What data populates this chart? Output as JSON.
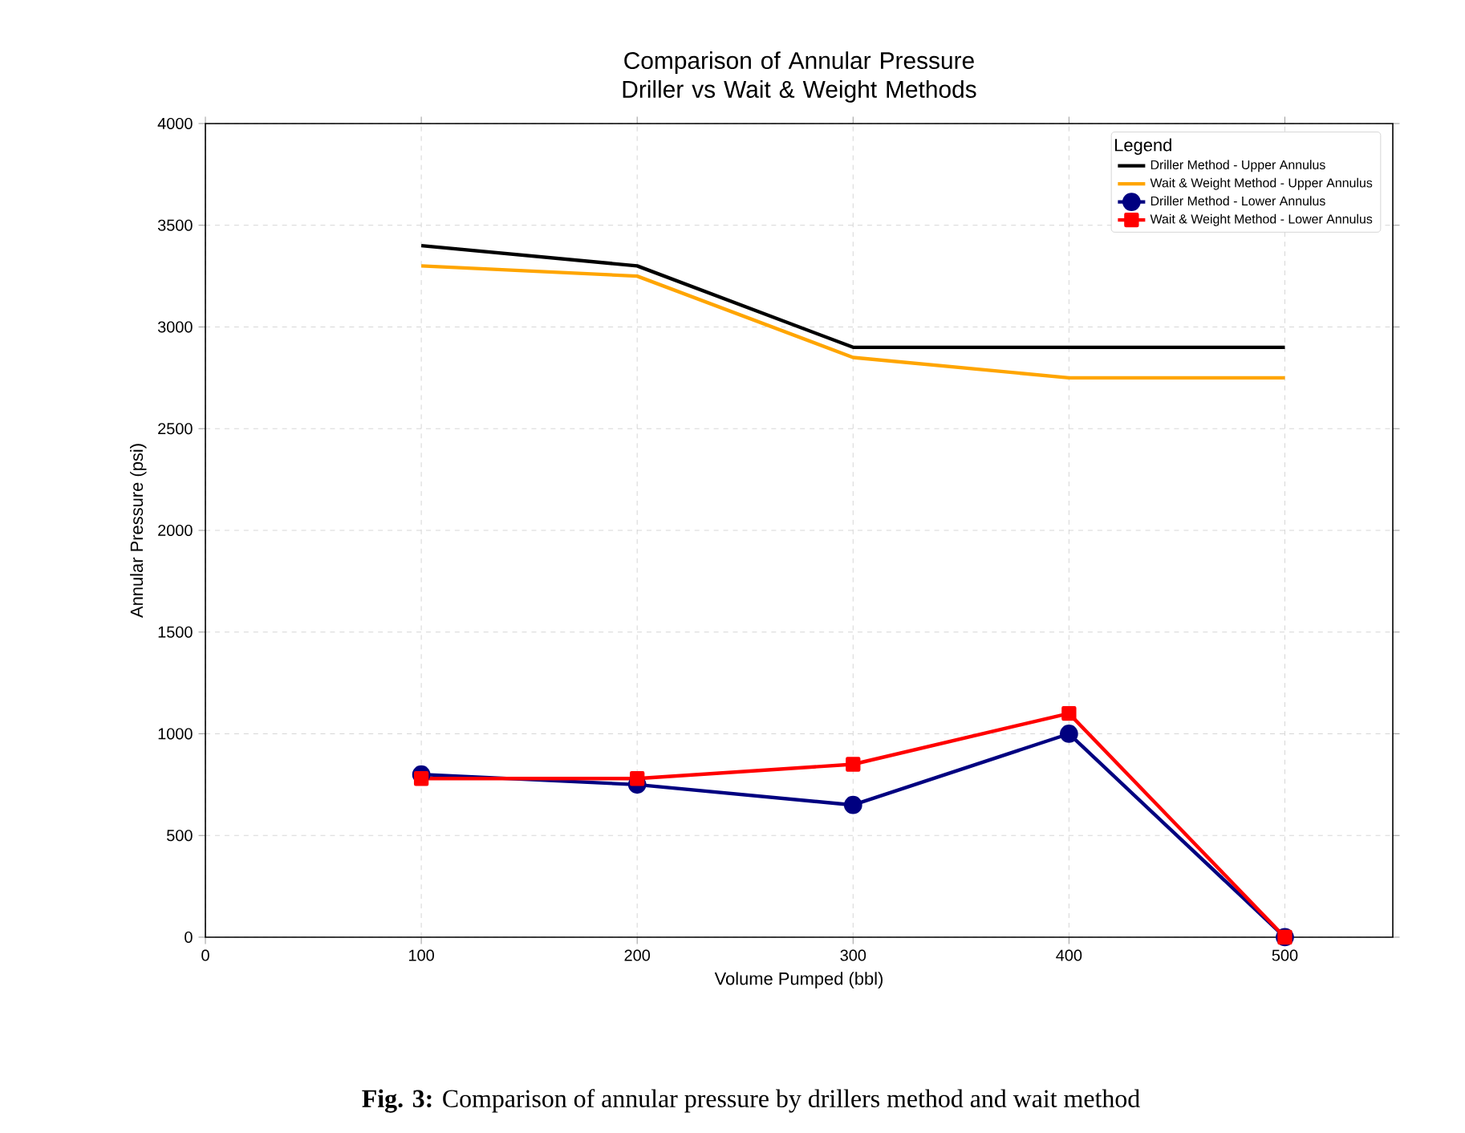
{
  "chart_data": {
    "type": "line",
    "title": "Comparison of Annular Pressure\nDriller vs Wait & Weight Methods",
    "xlabel": "Volume Pumped (bbl)",
    "ylabel": "Annular Pressure (psi)",
    "x": [
      100,
      200,
      300,
      400,
      500
    ],
    "series": [
      {
        "name": "Driller Method - Upper Annulus",
        "color": "#000000",
        "marker": "none",
        "values": [
          3400,
          3300,
          2900,
          2900,
          2900
        ]
      },
      {
        "name": "Wait & Weight Method - Upper Annulus",
        "color": "#ffa500",
        "marker": "none",
        "values": [
          3300,
          3250,
          2850,
          2750,
          2750
        ]
      },
      {
        "name": "Driller Method - Lower Annulus",
        "color": "#000080",
        "marker": "circle",
        "values": [
          800,
          750,
          650,
          1000,
          0
        ]
      },
      {
        "name": "Wait & Weight Method - Lower Annulus",
        "color": "#ff0000",
        "marker": "square",
        "values": [
          780,
          780,
          850,
          1100,
          0
        ]
      }
    ],
    "xlim": [
      0,
      550
    ],
    "xticks": [
      0,
      100,
      200,
      300,
      400,
      500
    ],
    "ylim": [
      0,
      4000
    ],
    "yticks": [
      0,
      500,
      1000,
      1500,
      2000,
      2500,
      3000,
      3500,
      4000
    ],
    "grid": true,
    "legend": "top right",
    "legend_title": "Legend",
    "line_style": "solid",
    "annotations": [
      "**Fig. 3:**   Comparison  of annular pressure by drillers method and wait method"
    ]
  }
}
